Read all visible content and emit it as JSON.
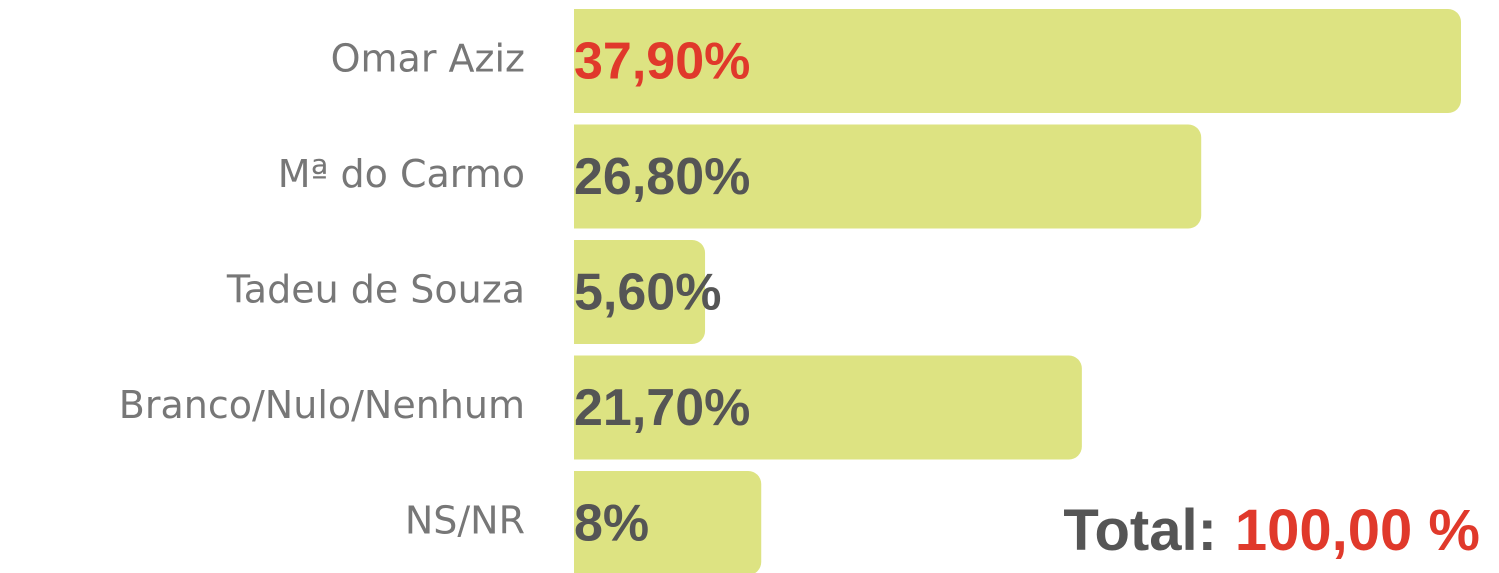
{
  "chart_data": {
    "type": "bar",
    "orientation": "horizontal",
    "categories": [
      "Omar Aziz",
      "Mª do Carmo",
      "Tadeu de Souza",
      "Branco/Nulo/Nenhum",
      "NS/NR"
    ],
    "values": [
      37.9,
      26.8,
      5.6,
      21.7,
      8
    ],
    "value_labels": [
      "37,90%",
      "26,80%",
      "5,60%",
      "21,70%",
      "8%"
    ],
    "value_label_colors": [
      "#e0392b",
      "#555555",
      "#555555",
      "#555555",
      "#555555"
    ],
    "color": "#dde382",
    "total_label": "Total:",
    "total_value_label": "100,00 %",
    "total_value_color": "#e0392b"
  }
}
